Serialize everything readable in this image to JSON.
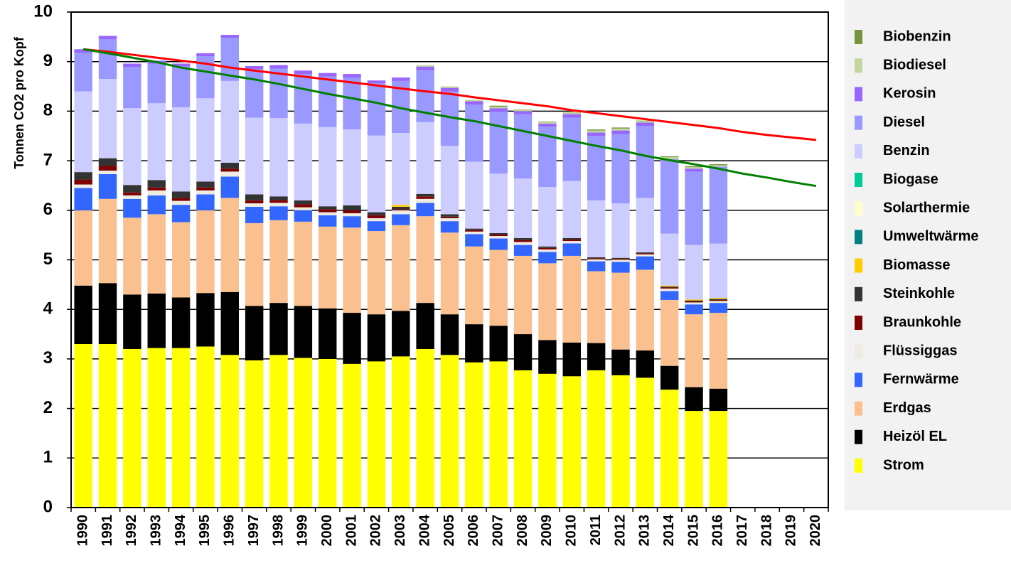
{
  "chart_data": {
    "type": "stacked-bar",
    "y_label": "Tonnen CO2 pro Kopf",
    "categories": [
      "1990",
      "1991",
      "1992",
      "1993",
      "1994",
      "1995",
      "1996",
      "1997",
      "1998",
      "1999",
      "2000",
      "2001",
      "2002",
      "2003",
      "2004",
      "2005",
      "2006",
      "2007",
      "2008",
      "2009",
      "2010",
      "2011",
      "2012",
      "2013",
      "2014",
      "2015",
      "2016",
      "2017",
      "2018",
      "2019",
      "2020"
    ],
    "ylim": [
      0,
      10
    ],
    "yticks": [
      0,
      1,
      2,
      3,
      4,
      5,
      6,
      7,
      8,
      9,
      10
    ],
    "grid": true,
    "legend": "right",
    "series": [
      {
        "name": "Strom",
        "color": "#ffff00",
        "values": [
          3.3,
          3.3,
          3.2,
          3.22,
          3.22,
          3.25,
          3.08,
          2.97,
          3.08,
          3.02,
          3.0,
          2.9,
          2.95,
          3.05,
          3.2,
          3.08,
          2.93,
          2.95,
          2.77,
          2.7,
          2.65,
          2.77,
          2.67,
          2.62,
          2.38,
          1.95,
          1.95,
          null,
          null,
          null,
          null
        ]
      },
      {
        "name": "Heizöl EL",
        "color": "#000000",
        "values": [
          1.18,
          1.23,
          1.1,
          1.1,
          1.02,
          1.08,
          1.27,
          1.1,
          1.05,
          1.05,
          1.02,
          1.03,
          0.95,
          0.92,
          0.93,
          0.82,
          0.77,
          0.72,
          0.73,
          0.68,
          0.68,
          0.55,
          0.52,
          0.55,
          0.48,
          0.48,
          0.45,
          null,
          null,
          null,
          null
        ]
      },
      {
        "name": "Erdgas",
        "color": "#fac090",
        "values": [
          1.52,
          1.7,
          1.55,
          1.6,
          1.52,
          1.67,
          1.9,
          1.67,
          1.67,
          1.7,
          1.65,
          1.72,
          1.68,
          1.73,
          1.75,
          1.65,
          1.57,
          1.53,
          1.58,
          1.55,
          1.75,
          1.45,
          1.55,
          1.63,
          1.33,
          1.47,
          1.53,
          null,
          null,
          null,
          null
        ]
      },
      {
        "name": "Fernwärme",
        "color": "#3366ff",
        "values": [
          0.45,
          0.5,
          0.38,
          0.38,
          0.35,
          0.32,
          0.43,
          0.33,
          0.28,
          0.23,
          0.23,
          0.23,
          0.2,
          0.22,
          0.27,
          0.23,
          0.25,
          0.23,
          0.22,
          0.23,
          0.25,
          0.2,
          0.22,
          0.27,
          0.18,
          0.2,
          0.2,
          null,
          null,
          null,
          null
        ]
      },
      {
        "name": "Flüssiggas",
        "color": "#eeece1",
        "values": [
          0.07,
          0.07,
          0.07,
          0.1,
          0.08,
          0.08,
          0.1,
          0.07,
          0.07,
          0.06,
          0.06,
          0.06,
          0.06,
          0.08,
          0.08,
          0.06,
          0.05,
          0.05,
          0.06,
          0.05,
          0.05,
          0.04,
          0.04,
          0.04,
          0.05,
          0.04,
          0.04,
          null,
          null,
          null,
          null
        ]
      },
      {
        "name": "Braunkohle",
        "color": "#800000",
        "values": [
          0.1,
          0.1,
          0.06,
          0.06,
          0.06,
          0.06,
          0.06,
          0.06,
          0.06,
          0.06,
          0.06,
          0.06,
          0.06,
          0.02,
          0.05,
          0.03,
          0.03,
          0.03,
          0.04,
          0.03,
          0.03,
          0.02,
          0.02,
          0.02,
          0.02,
          0.02,
          0.02,
          null,
          null,
          null,
          null
        ]
      },
      {
        "name": "Steinkohle",
        "color": "#333333",
        "values": [
          0.15,
          0.15,
          0.15,
          0.15,
          0.13,
          0.12,
          0.12,
          0.12,
          0.07,
          0.08,
          0.06,
          0.1,
          0.06,
          0.05,
          0.05,
          0.05,
          0.03,
          0.03,
          0.04,
          0.03,
          0.03,
          0.02,
          0.02,
          0.02,
          0.02,
          0.02,
          0.02,
          null,
          null,
          null,
          null
        ]
      },
      {
        "name": "Biomasse",
        "color": "#ffcc00",
        "values": [
          0,
          0,
          0,
          0,
          0,
          0,
          0,
          0,
          0,
          0,
          0,
          0,
          0,
          0.04,
          0,
          0,
          0,
          0,
          0,
          0,
          0,
          0,
          0,
          0,
          0.02,
          0.02,
          0.02,
          null,
          null,
          null,
          null
        ]
      },
      {
        "name": "Umweltwärme",
        "color": "#008080",
        "values": [
          0,
          0,
          0,
          0,
          0,
          0,
          0,
          0,
          0,
          0,
          0,
          0,
          0,
          0,
          0,
          0,
          0,
          0,
          0,
          0,
          0,
          0,
          0,
          0,
          0,
          0,
          0,
          null,
          null,
          null,
          null
        ]
      },
      {
        "name": "Solarthermie",
        "color": "#ffffcc",
        "values": [
          0,
          0,
          0,
          0,
          0,
          0,
          0,
          0,
          0,
          0,
          0,
          0,
          0,
          0,
          0,
          0,
          0,
          0,
          0,
          0,
          0,
          0,
          0,
          0,
          0,
          0,
          0,
          null,
          null,
          null,
          null
        ]
      },
      {
        "name": "Biogase",
        "color": "#00cc99",
        "values": [
          0,
          0,
          0,
          0,
          0,
          0,
          0,
          0,
          0,
          0,
          0,
          0,
          0,
          0,
          0,
          0,
          0,
          0,
          0,
          0,
          0,
          0,
          0,
          0,
          0,
          0,
          0,
          null,
          null,
          null,
          null
        ]
      },
      {
        "name": "Benzin",
        "color": "#ccccff",
        "values": [
          1.63,
          1.6,
          1.55,
          1.55,
          1.7,
          1.68,
          1.65,
          1.55,
          1.58,
          1.55,
          1.6,
          1.53,
          1.55,
          1.45,
          1.45,
          1.38,
          1.35,
          1.2,
          1.2,
          1.2,
          1.15,
          1.15,
          1.1,
          1.1,
          1.05,
          1.1,
          1.1,
          null,
          null,
          null,
          null
        ]
      },
      {
        "name": "Diesel",
        "color": "#9999ff",
        "values": [
          0.78,
          0.8,
          0.83,
          0.8,
          0.82,
          0.85,
          0.87,
          0.98,
          1.0,
          1.0,
          1.02,
          1.05,
          1.05,
          1.05,
          1.05,
          1.1,
          1.15,
          1.25,
          1.3,
          1.22,
          1.28,
          1.3,
          1.4,
          1.45,
          1.5,
          1.48,
          1.55,
          null,
          null,
          null,
          null
        ]
      },
      {
        "name": "Kerosin",
        "color": "#9966ff",
        "values": [
          0.07,
          0.07,
          0.07,
          0.06,
          0.06,
          0.06,
          0.06,
          0.06,
          0.07,
          0.07,
          0.07,
          0.07,
          0.06,
          0.07,
          0.07,
          0.07,
          0.07,
          0.07,
          0.06,
          0.06,
          0.07,
          0.07,
          0.07,
          0.07,
          0,
          0.06,
          0,
          null,
          null,
          null,
          null
        ]
      },
      {
        "name": "Biodiesel",
        "color": "#c3d69b",
        "values": [
          0,
          0,
          0,
          0,
          0,
          0,
          0,
          0,
          0,
          0,
          0,
          0,
          0,
          0,
          0.03,
          0.03,
          0.03,
          0.03,
          0.02,
          0.03,
          0.02,
          0.04,
          0.04,
          0.03,
          0.04,
          0.03,
          0.03,
          null,
          null,
          null,
          null
        ]
      },
      {
        "name": "Biobenzin",
        "color": "#77933c",
        "values": [
          0,
          0,
          0,
          0,
          0,
          0,
          0,
          0,
          0,
          0,
          0,
          0,
          0,
          0,
          0,
          0,
          0,
          0.02,
          0.01,
          0.01,
          0.01,
          0.02,
          0.02,
          0.01,
          0.02,
          0.02,
          0.02,
          null,
          null,
          null,
          null
        ]
      }
    ],
    "lines": [
      {
        "color": "#ff0000",
        "values": [
          9.25,
          9.2,
          9.14,
          9.08,
          9.02,
          8.96,
          8.88,
          8.82,
          8.76,
          8.7,
          8.64,
          8.58,
          8.52,
          8.46,
          8.4,
          8.35,
          8.28,
          8.22,
          8.16,
          8.1,
          8.02,
          7.96,
          7.9,
          7.84,
          7.78,
          7.72,
          7.66,
          7.58,
          7.52,
          7.47,
          7.42
        ]
      },
      {
        "color": "#008000",
        "values": [
          9.25,
          9.17,
          9.08,
          8.99,
          8.88,
          8.8,
          8.72,
          8.64,
          8.55,
          8.45,
          8.35,
          8.26,
          8.17,
          8.06,
          7.97,
          7.88,
          7.8,
          7.7,
          7.6,
          7.5,
          7.4,
          7.3,
          7.21,
          7.1,
          7.01,
          6.93,
          6.84,
          6.74,
          6.66,
          6.57,
          6.49
        ]
      }
    ]
  }
}
